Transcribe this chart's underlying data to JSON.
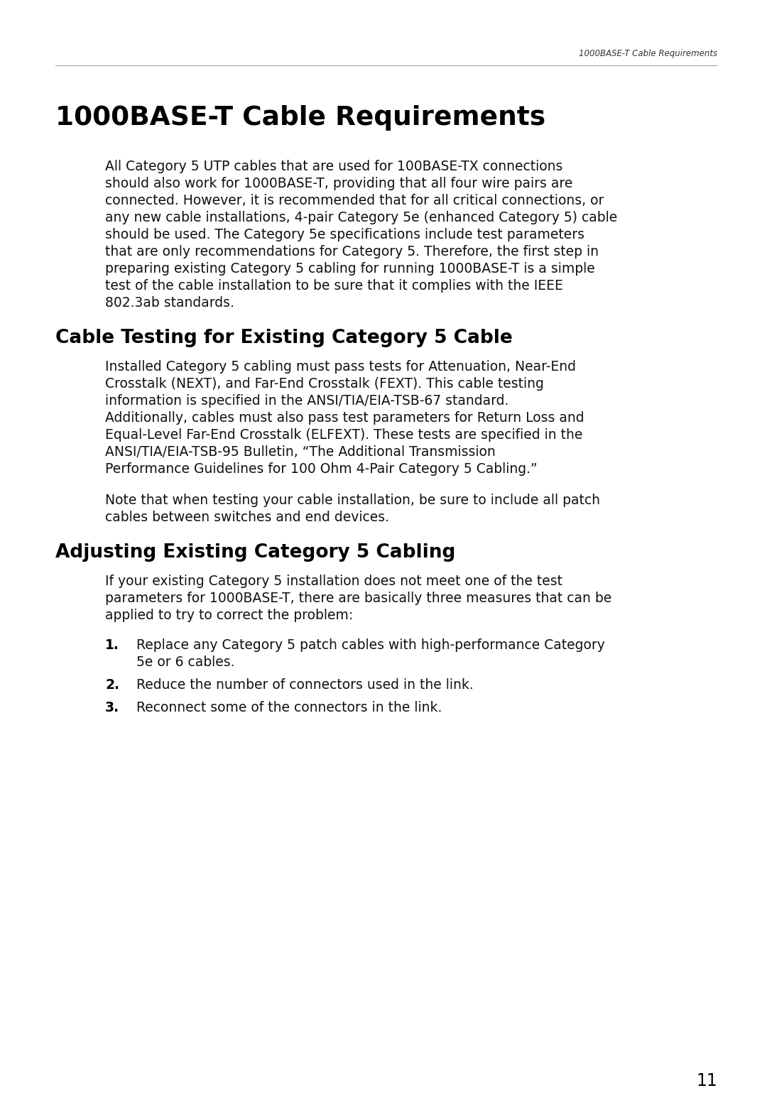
{
  "background_color": "#ffffff",
  "page_number": "11",
  "header_text": "1000BASE-T Cable Requirements",
  "main_title": "1000BASE-T Cable Requirements",
  "section1_title": "Cable Testing for Existing Category 5 Cable",
  "section2_title": "Adjusting Existing Category 5 Cabling",
  "intro_lines": [
    "All Category 5 UTP cables that are used for 100BASE-TX connections",
    "should also work for 1000BASE-T, providing that all four wire pairs are",
    "connected. However, it is recommended that for all critical connections, or",
    "any new cable installations, 4-pair Category 5e (enhanced Category 5) cable",
    "should be used. The Category 5e specifications include test parameters",
    "that are only recommendations for Category 5. Therefore, the first step in",
    "preparing existing Category 5 cabling for running 1000BASE-T is a simple",
    "test of the cable installation to be sure that it complies with the IEEE",
    "802.3ab standards."
  ],
  "s1p1_lines": [
    "Installed Category 5 cabling must pass tests for Attenuation, Near-End",
    "Crosstalk (NEXT), and Far-End Crosstalk (FEXT). This cable testing",
    "information is specified in the ANSI/TIA/EIA-TSB-67 standard.",
    "Additionally, cables must also pass test parameters for Return Loss and",
    "Equal-Level Far-End Crosstalk (ELFEXT). These tests are specified in the",
    "ANSI/TIA/EIA-TSB-95 Bulletin, “The Additional Transmission",
    "Performance Guidelines for 100 Ohm 4-Pair Category 5 Cabling.”"
  ],
  "s1p2_lines": [
    "Note that when testing your cable installation, be sure to include all patch",
    "cables between switches and end devices."
  ],
  "s2p_lines": [
    "If your existing Category 5 installation does not meet one of the test",
    "parameters for 1000BASE-T, there are basically three measures that can be",
    "applied to try to correct the problem:"
  ],
  "list_item1_line1": "Replace any Category 5 patch cables with high-performance Category",
  "list_item1_line2": "5e or 6 cables.",
  "list_item2": "Reduce the number of connectors used in the link.",
  "list_item3": "Reconnect some of the connectors in the link."
}
